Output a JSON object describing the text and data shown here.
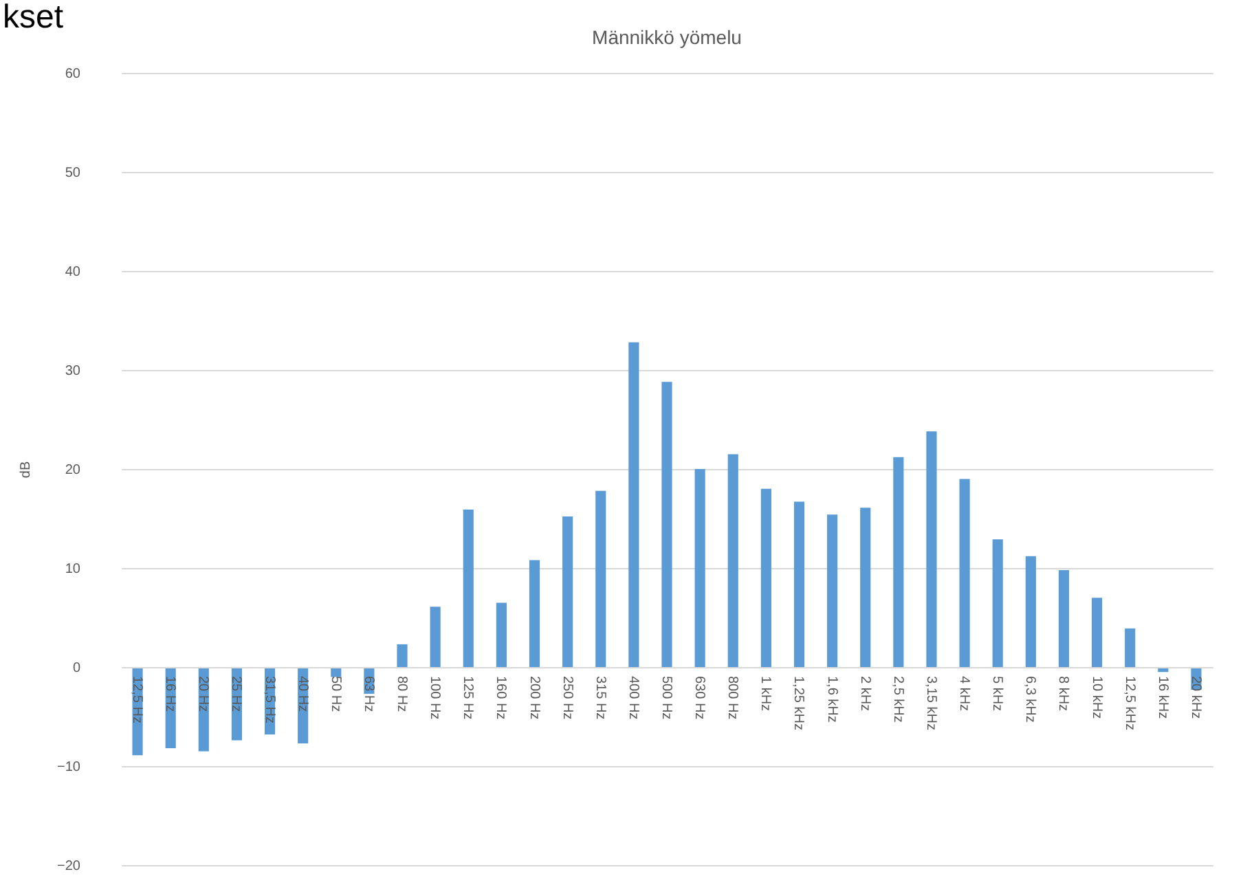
{
  "chart_data": {
    "type": "bar",
    "title": "Männikkö yömelu",
    "ylabel": "dB",
    "categories": [
      "12,5 Hz",
      "16 Hz",
      "20 Hz",
      "25 Hz",
      "31,5 Hz",
      "40 Hz",
      "50 Hz",
      "63 Hz",
      "80 Hz",
      "100 Hz",
      "125 Hz",
      "160 Hz",
      "200 Hz",
      "250 Hz",
      "315 Hz",
      "400 Hz",
      "500 Hz",
      "630 Hz",
      "800 Hz",
      "1 kHz",
      "1,25 kHz",
      "1,6 kHz",
      "2 kHz",
      "2,5 kHz",
      "3,15 kHz",
      "4 kHz",
      "5 kHz",
      "6,3 kHz",
      "8 kHz",
      "10 kHz",
      "12,5 kHz",
      "16 kHz",
      "20 kHz"
    ],
    "values": [
      -8.9,
      -8.2,
      -8.5,
      -7.4,
      -6.8,
      -7.7,
      -1.0,
      -2.7,
      2.3,
      6.1,
      15.9,
      6.5,
      10.8,
      15.2,
      17.8,
      32.8,
      28.8,
      20.0,
      21.5,
      18.0,
      16.7,
      15.4,
      16.1,
      21.2,
      23.8,
      19.0,
      12.9,
      11.2,
      9.8,
      7.0,
      3.9,
      -0.5,
      -2.3
    ],
    "color": "#5b9bd5",
    "ylim": [
      -20,
      60
    ],
    "yticks": [
      -20,
      -10,
      0,
      10,
      20,
      30,
      40,
      50,
      60
    ],
    "grid": "y",
    "annotations": [
      "kset"
    ]
  }
}
